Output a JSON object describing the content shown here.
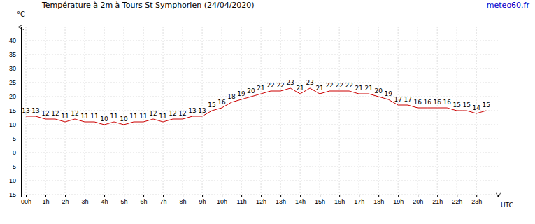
{
  "chart_data": {
    "type": "line",
    "title": "Température à 2m à Tours St Symphorien (24/04/2020)",
    "annotations": [
      "meteo60.fr"
    ],
    "y_label": "°C",
    "x_label": "UTC",
    "color": "#cc0000",
    "grid": true,
    "data_labels": true,
    "x": [
      0,
      0.5,
      1,
      1.5,
      2,
      2.5,
      3,
      3.5,
      4,
      4.5,
      5,
      5.5,
      6,
      6.5,
      7,
      7.5,
      8,
      8.5,
      9,
      9.5,
      10,
      10.5,
      11,
      11.5,
      12,
      12.5,
      13,
      13.5,
      14,
      14.5,
      15,
      15.5,
      16,
      16.5,
      17,
      17.5,
      18,
      18.5,
      19,
      19.5,
      20,
      20.5,
      21,
      21.5,
      22,
      22.5,
      23,
      23.5
    ],
    "values": [
      13,
      13,
      12,
      12,
      11,
      12,
      11,
      11,
      10,
      11,
      10,
      11,
      11,
      12,
      11,
      12,
      12,
      13,
      13,
      15,
      16,
      18,
      19,
      20,
      21,
      22,
      22,
      23,
      21,
      23,
      21,
      22,
      22,
      22,
      21,
      21,
      20,
      19,
      17,
      17,
      16,
      16,
      16,
      16,
      15,
      15,
      14,
      15
    ],
    "xlim": [
      -0.25,
      24.1
    ],
    "xticks": [
      {
        "value": 0,
        "label": "00h"
      },
      {
        "value": 1,
        "label": "1h"
      },
      {
        "value": 2,
        "label": "2h"
      },
      {
        "value": 3,
        "label": "3h"
      },
      {
        "value": 4,
        "label": "4h"
      },
      {
        "value": 5,
        "label": "5h"
      },
      {
        "value": 6,
        "label": "6h"
      },
      {
        "value": 7,
        "label": "7h"
      },
      {
        "value": 8,
        "label": "8h"
      },
      {
        "value": 9,
        "label": "9h"
      },
      {
        "value": 10,
        "label": "10h"
      },
      {
        "value": 11,
        "label": "11h"
      },
      {
        "value": 12,
        "label": "12h"
      },
      {
        "value": 13,
        "label": "13h"
      },
      {
        "value": 14,
        "label": "14h"
      },
      {
        "value": 15,
        "label": "15h"
      },
      {
        "value": 16,
        "label": "16h"
      },
      {
        "value": 17,
        "label": "17h"
      },
      {
        "value": 18,
        "label": "18h"
      },
      {
        "value": 19,
        "label": "19h"
      },
      {
        "value": 20,
        "label": "20h"
      },
      {
        "value": 21,
        "label": "21h"
      },
      {
        "value": 22,
        "label": "22h"
      },
      {
        "value": 23,
        "label": "23h"
      }
    ],
    "ylim": [
      -15,
      45
    ],
    "yticks": [
      -15,
      -10,
      -5,
      0,
      5,
      10,
      15,
      20,
      25,
      30,
      35,
      40
    ]
  }
}
